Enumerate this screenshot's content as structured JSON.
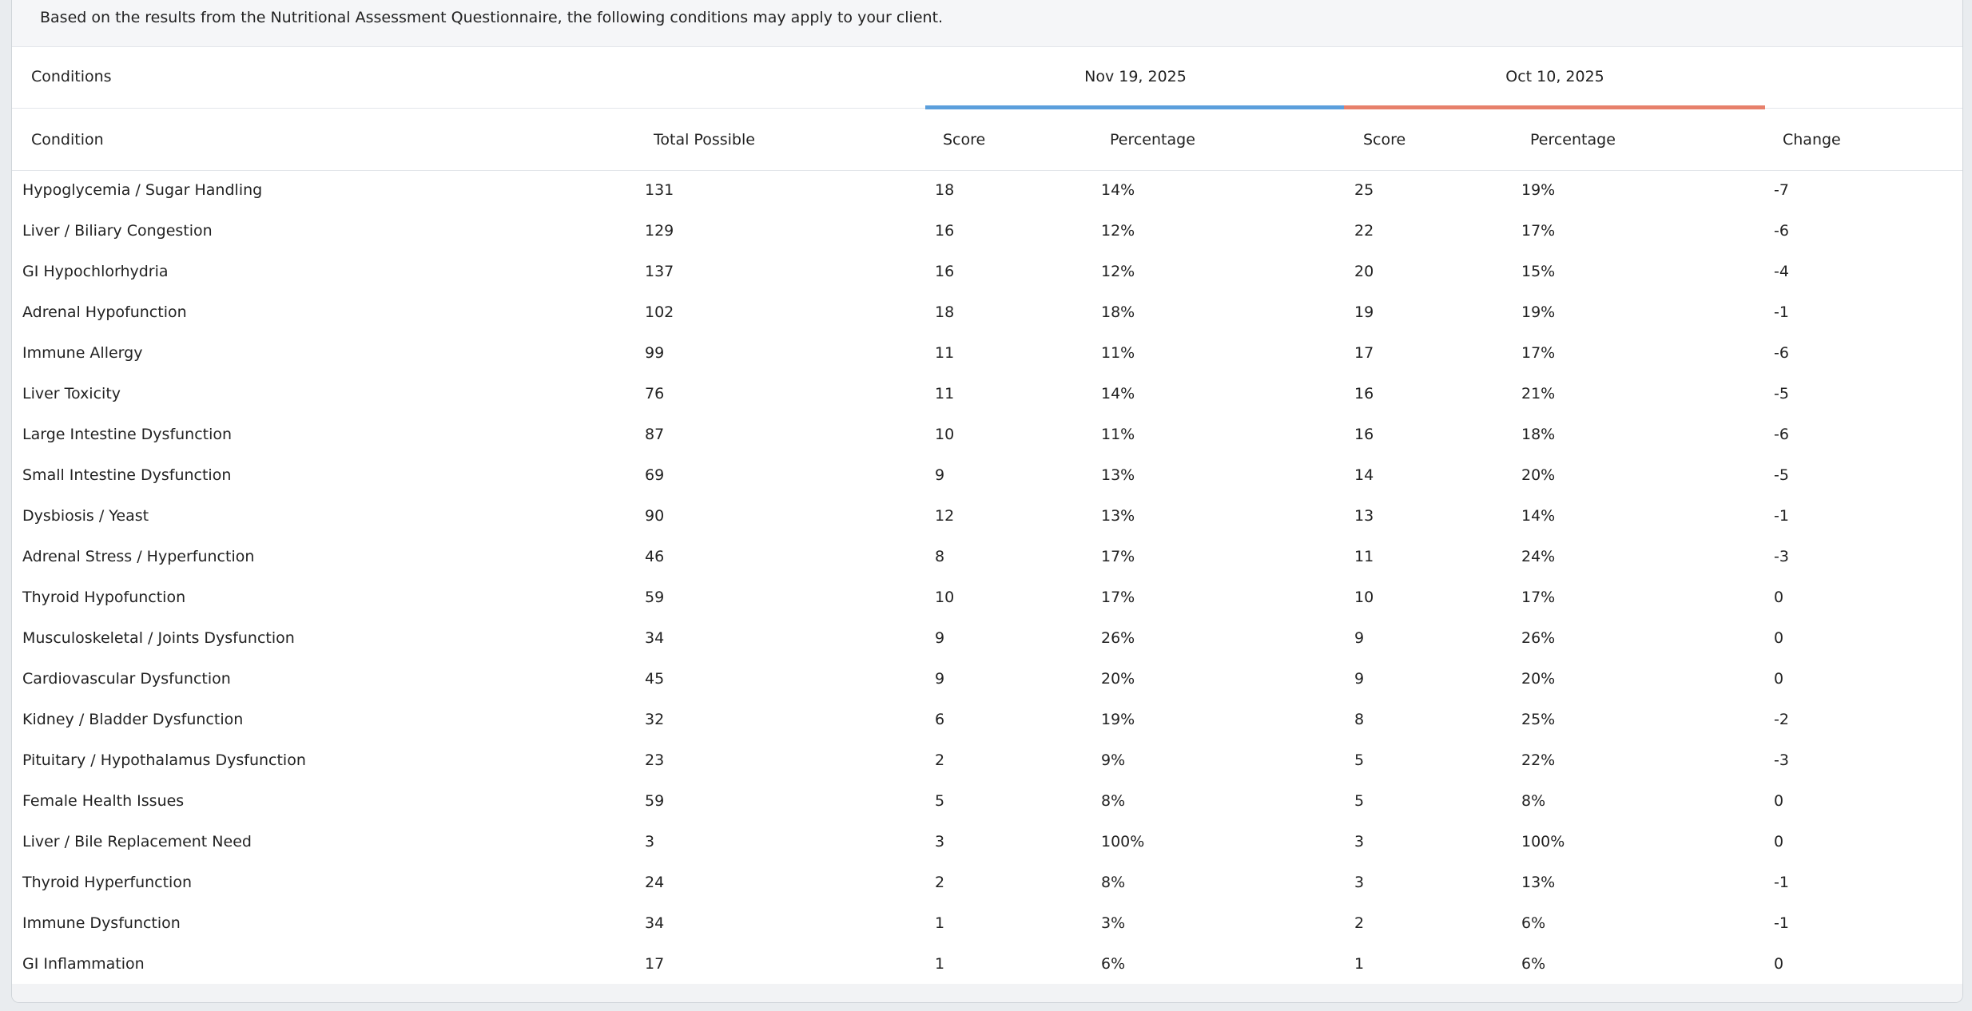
{
  "header": {
    "notice": "Based on the results from the Nutritional Assessment Questionnaire, the following conditions may apply to your client.",
    "section_title": "Conditions",
    "periods": [
      "Nov 19, 2025",
      "Oct 10, 2025"
    ]
  },
  "table": {
    "columns": [
      "Condition",
      "Total Possible",
      "Score",
      "Percentage",
      "Score",
      "Percentage",
      "Change"
    ],
    "rows": [
      [
        "Hypoglycemia / Sugar Handling",
        "131",
        "18",
        "14%",
        "25",
        "19%",
        "-7"
      ],
      [
        "Liver / Biliary Congestion",
        "129",
        "16",
        "12%",
        "22",
        "17%",
        "-6"
      ],
      [
        "GI Hypochlorhydria",
        "137",
        "16",
        "12%",
        "20",
        "15%",
        "-4"
      ],
      [
        "Adrenal Hypofunction",
        "102",
        "18",
        "18%",
        "19",
        "19%",
        "-1"
      ],
      [
        "Immune Allergy",
        "99",
        "11",
        "11%",
        "17",
        "17%",
        "-6"
      ],
      [
        "Liver Toxicity",
        "76",
        "11",
        "14%",
        "16",
        "21%",
        "-5"
      ],
      [
        "Large Intestine Dysfunction",
        "87",
        "10",
        "11%",
        "16",
        "18%",
        "-6"
      ],
      [
        "Small Intestine Dysfunction",
        "69",
        "9",
        "13%",
        "14",
        "20%",
        "-5"
      ],
      [
        "Dysbiosis / Yeast",
        "90",
        "12",
        "13%",
        "13",
        "14%",
        "-1"
      ],
      [
        "Adrenal Stress / Hyperfunction",
        "46",
        "8",
        "17%",
        "11",
        "24%",
        "-3"
      ],
      [
        "Thyroid Hypofunction",
        "59",
        "10",
        "17%",
        "10",
        "17%",
        "0"
      ],
      [
        "Musculoskeletal / Joints Dysfunction",
        "34",
        "9",
        "26%",
        "9",
        "26%",
        "0"
      ],
      [
        "Cardiovascular Dysfunction",
        "45",
        "9",
        "20%",
        "9",
        "20%",
        "0"
      ],
      [
        "Kidney / Bladder Dysfunction",
        "32",
        "6",
        "19%",
        "8",
        "25%",
        "-2"
      ],
      [
        "Pituitary / Hypothalamus Dysfunction",
        "23",
        "2",
        "9%",
        "5",
        "22%",
        "-3"
      ],
      [
        "Female Health Issues",
        "59",
        "5",
        "8%",
        "5",
        "8%",
        "0"
      ],
      [
        "Liver / Bile Replacement Need",
        "3",
        "3",
        "100%",
        "3",
        "100%",
        "0"
      ],
      [
        "Thyroid Hyperfunction",
        "24",
        "2",
        "8%",
        "3",
        "13%",
        "-1"
      ],
      [
        "Immune Dysfunction",
        "34",
        "1",
        "3%",
        "2",
        "6%",
        "-1"
      ],
      [
        "GI Inflammation",
        "17",
        "1",
        "6%",
        "1",
        "6%",
        "0"
      ]
    ]
  }
}
